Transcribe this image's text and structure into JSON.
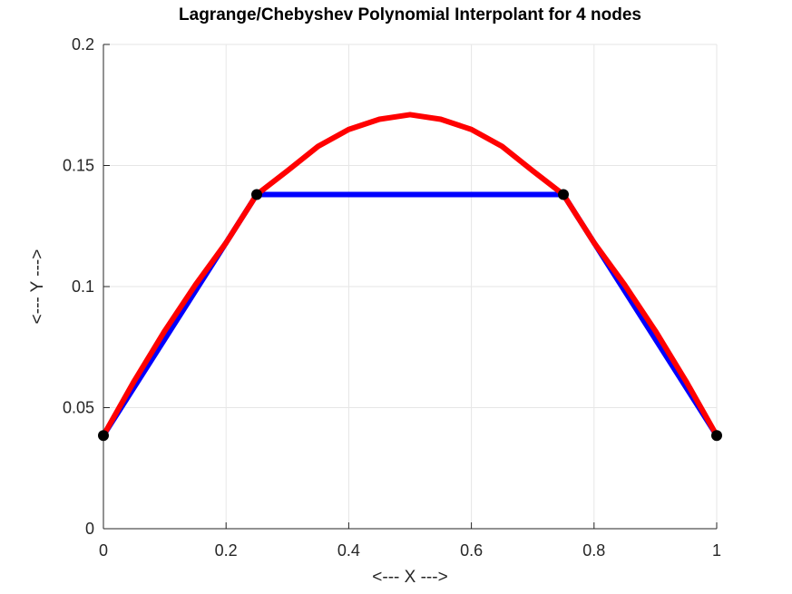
{
  "chart_data": {
    "type": "line",
    "title": "Lagrange/Chebyshev Polynomial Interpolant for 4 nodes",
    "xlabel": "<--- X --->",
    "ylabel": "<--- Y --->",
    "xlim": [
      0,
      1
    ],
    "ylim": [
      0,
      0.2
    ],
    "xticks": [
      0,
      0.2,
      0.4,
      0.6,
      0.8,
      1
    ],
    "xtick_labels": [
      "0",
      "0.2",
      "0.4",
      "0.6",
      "0.8",
      "1"
    ],
    "yticks": [
      0,
      0.05,
      0.1,
      0.15,
      0.2
    ],
    "ytick_labels": [
      "0",
      "0.05",
      "0.1",
      "0.15",
      "0.2"
    ],
    "grid": true,
    "series": [
      {
        "color": "#0000ff",
        "style": "line",
        "x": [
          0,
          0.25,
          0.75,
          1
        ],
        "y": [
          0.0385,
          0.138,
          0.138,
          0.0385
        ]
      },
      {
        "color": "#ff0000",
        "style": "line",
        "x": [
          0,
          0.05,
          0.1,
          0.15,
          0.2,
          0.25,
          0.3,
          0.35,
          0.4,
          0.45,
          0.5,
          0.55,
          0.6,
          0.65,
          0.7,
          0.75,
          0.8,
          0.85,
          0.9,
          0.95,
          1
        ],
        "y": [
          0.0385,
          0.0609,
          0.0817,
          0.1007,
          0.1181,
          0.138,
          0.1478,
          0.1579,
          0.1649,
          0.1691,
          0.171,
          0.1691,
          0.1649,
          0.1579,
          0.1478,
          0.138,
          0.1181,
          0.1007,
          0.0817,
          0.0609,
          0.0385
        ]
      },
      {
        "color": "#000000",
        "style": "markers",
        "x": [
          0,
          0.25,
          0.75,
          1
        ],
        "y": [
          0.0385,
          0.138,
          0.138,
          0.0385
        ]
      }
    ]
  }
}
